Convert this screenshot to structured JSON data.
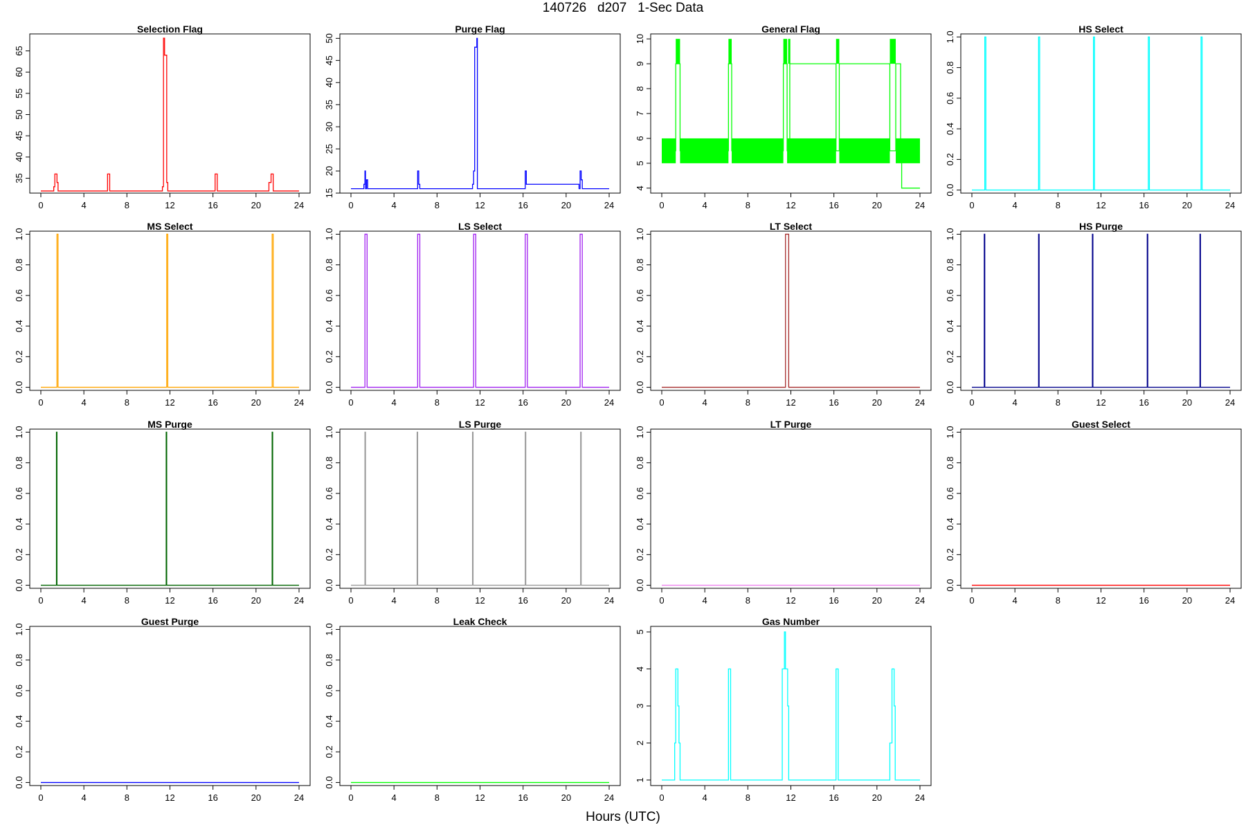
{
  "figure": {
    "title": "140726   d207   1-Sec Data",
    "xlabel": "Hours (UTC)"
  },
  "chart_data": [
    {
      "type": "line",
      "title": "Selection Flag",
      "color": "#ff0000",
      "xlim": [
        0,
        24
      ],
      "ylim": [
        31.5,
        69
      ],
      "xticks": [
        0,
        4,
        8,
        12,
        16,
        20,
        24
      ],
      "yticks": [
        35,
        40,
        45,
        50,
        55,
        60,
        65
      ],
      "x": [
        0,
        1.2,
        1.2,
        1.3,
        1.3,
        1.5,
        1.5,
        1.6,
        1.6,
        6.2,
        6.2,
        6.4,
        6.4,
        11.3,
        11.3,
        11.4,
        11.4,
        11.5,
        11.5,
        11.7,
        11.7,
        11.8,
        11.8,
        16.2,
        16.2,
        16.4,
        16.4,
        21.2,
        21.2,
        21.4,
        21.4,
        21.6,
        21.6,
        24
      ],
      "y": [
        32,
        32,
        33,
        33,
        36,
        36,
        34,
        34,
        32,
        32,
        36,
        36,
        32,
        32,
        33,
        33,
        68,
        68,
        64,
        64,
        34,
        34,
        32,
        32,
        36,
        36,
        32,
        32,
        34,
        34,
        36,
        36,
        32,
        32
      ]
    },
    {
      "type": "line",
      "title": "Purge Flag",
      "color": "#0000ff",
      "xlim": [
        0,
        24
      ],
      "ylim": [
        15,
        51
      ],
      "xticks": [
        0,
        4,
        8,
        12,
        16,
        20,
        24
      ],
      "yticks": [
        15,
        20,
        25,
        30,
        35,
        40,
        45,
        50
      ],
      "x": [
        0,
        1.2,
        1.2,
        1.3,
        1.3,
        1.35,
        1.35,
        1.45,
        1.45,
        1.55,
        1.55,
        6.2,
        6.2,
        6.3,
        6.3,
        6.4,
        6.4,
        11.3,
        11.3,
        11.4,
        11.4,
        11.5,
        11.5,
        11.7,
        11.7,
        11.75,
        11.75,
        16.2,
        16.2,
        16.3,
        16.3,
        21.2,
        21.2,
        21.3,
        21.3,
        21.4,
        21.4,
        21.5,
        21.5,
        24
      ],
      "y": [
        16,
        16,
        17,
        17,
        20,
        20,
        16,
        16,
        18,
        18,
        16,
        16,
        20,
        20,
        17,
        17,
        16,
        16,
        17,
        17,
        20,
        20,
        48,
        48,
        50,
        50,
        16,
        16,
        20,
        20,
        17,
        17,
        16,
        16,
        20,
        20,
        18,
        18,
        16,
        16
      ]
    },
    {
      "type": "line",
      "title": "General Flag",
      "color": "#00ff00",
      "xlim": [
        0,
        24
      ],
      "ylim": [
        3.8,
        10.2
      ],
      "xticks": [
        0,
        4,
        8,
        12,
        16,
        20,
        24
      ],
      "yticks": [
        4,
        5,
        6,
        7,
        8,
        9,
        10
      ],
      "x": [
        0,
        1.3,
        1.3,
        1.7,
        1.7,
        6.2,
        6.2,
        6.5,
        6.5,
        11.3,
        11.3,
        11.65,
        11.65,
        11.9,
        11.9,
        16.2,
        16.2,
        16.5,
        16.5,
        21.2,
        21.2,
        21.75,
        21.75,
        22.2,
        22.2,
        22.3,
        22.3,
        24
      ],
      "y": [
        5.5,
        5.5,
        9,
        9,
        5.5,
        5.5,
        9,
        9,
        5.5,
        5.5,
        9,
        9,
        5.5,
        5.5,
        9,
        9,
        5.5,
        5.5,
        9,
        9,
        5.5,
        5.5,
        9,
        9,
        5.5,
        5.5,
        4,
        4
      ]
    },
    {
      "type": "line",
      "title": "HS Select",
      "color": "#00ffff",
      "xlim": [
        0,
        24
      ],
      "ylim": [
        -0.02,
        1.02
      ],
      "xticks": [
        0,
        4,
        8,
        12,
        16,
        20,
        24
      ],
      "yticks": [
        0,
        0.2,
        0.4,
        0.6,
        0.8,
        1
      ],
      "x": [
        0,
        1.2,
        1.2,
        1.3,
        1.3,
        6.2,
        6.2,
        6.3,
        6.3,
        11.3,
        11.3,
        11.4,
        11.4,
        16.4,
        16.4,
        16.5,
        16.5,
        21.3,
        21.3,
        21.4,
        21.4,
        24
      ],
      "y": [
        0,
        0,
        1,
        1,
        0,
        0,
        1,
        1,
        0,
        0,
        1,
        1,
        0,
        0,
        1,
        1,
        0,
        0,
        1,
        1,
        0,
        0
      ]
    },
    {
      "type": "line",
      "title": "MS Select",
      "color": "#ffa500",
      "xlim": [
        0,
        24
      ],
      "ylim": [
        -0.02,
        1.02
      ],
      "xticks": [
        0,
        4,
        8,
        12,
        16,
        20,
        24
      ],
      "yticks": [
        0,
        0.2,
        0.4,
        0.6,
        0.8,
        1
      ],
      "x": [
        0,
        1.5,
        1.5,
        1.6,
        1.6,
        11.7,
        11.7,
        11.8,
        11.8,
        21.5,
        21.5,
        21.6,
        21.6,
        24
      ],
      "y": [
        0,
        0,
        1,
        1,
        0,
        0,
        1,
        1,
        0,
        0,
        1,
        1,
        0,
        0
      ]
    },
    {
      "type": "line",
      "title": "LS Select",
      "color": "#a020f0",
      "xlim": [
        0,
        24
      ],
      "ylim": [
        -0.02,
        1.02
      ],
      "xticks": [
        0,
        4,
        8,
        12,
        16,
        20,
        24
      ],
      "yticks": [
        0,
        0.2,
        0.4,
        0.6,
        0.8,
        1
      ],
      "x": [
        0,
        1.3,
        1.3,
        1.5,
        1.5,
        6.2,
        6.2,
        6.4,
        6.4,
        11.4,
        11.4,
        11.6,
        11.6,
        16.2,
        16.2,
        16.4,
        16.4,
        21.3,
        21.3,
        21.5,
        21.5,
        24
      ],
      "y": [
        0,
        0,
        1,
        1,
        0,
        0,
        1,
        1,
        0,
        0,
        1,
        1,
        0,
        0,
        1,
        1,
        0,
        0,
        1,
        1,
        0,
        0
      ]
    },
    {
      "type": "line",
      "title": "LT Select",
      "color": "#a52a2a",
      "xlim": [
        0,
        24
      ],
      "ylim": [
        -0.02,
        1.02
      ],
      "xticks": [
        0,
        4,
        8,
        12,
        16,
        20,
        24
      ],
      "yticks": [
        0,
        0.2,
        0.4,
        0.6,
        0.8,
        1
      ],
      "x": [
        0,
        11.5,
        11.5,
        11.8,
        11.8,
        24
      ],
      "y": [
        0,
        0,
        1,
        1,
        0,
        0
      ]
    },
    {
      "type": "line",
      "title": "HS Purge",
      "color": "#00008b",
      "xlim": [
        0,
        24
      ],
      "ylim": [
        -0.02,
        1.02
      ],
      "xticks": [
        0,
        4,
        8,
        12,
        16,
        20,
        24
      ],
      "yticks": [
        0,
        0.2,
        0.4,
        0.6,
        0.8,
        1
      ],
      "x": [
        0,
        1.15,
        1.15,
        1.2,
        1.2,
        6.2,
        6.2,
        6.25,
        6.25,
        11.2,
        11.2,
        11.25,
        11.25,
        16.3,
        16.3,
        16.35,
        16.35,
        21.2,
        21.2,
        21.25,
        21.25,
        24
      ],
      "y": [
        0,
        0,
        1,
        1,
        0,
        0,
        1,
        1,
        0,
        0,
        1,
        1,
        0,
        0,
        1,
        1,
        0,
        0,
        1,
        1,
        0,
        0
      ]
    },
    {
      "type": "line",
      "title": "MS Purge",
      "color": "#006400",
      "xlim": [
        0,
        24
      ],
      "ylim": [
        -0.02,
        1.02
      ],
      "xticks": [
        0,
        4,
        8,
        12,
        16,
        20,
        24
      ],
      "yticks": [
        0,
        0.2,
        0.4,
        0.6,
        0.8,
        1
      ],
      "x": [
        0,
        1.45,
        1.45,
        1.5,
        1.5,
        11.65,
        11.65,
        11.7,
        11.7,
        21.5,
        21.5,
        21.55,
        21.55,
        24
      ],
      "y": [
        0,
        0,
        1,
        1,
        0,
        0,
        1,
        1,
        0,
        0,
        1,
        1,
        0,
        0
      ]
    },
    {
      "type": "line",
      "title": "LS Purge",
      "color": "#999999",
      "xlim": [
        0,
        24
      ],
      "ylim": [
        -0.02,
        1.02
      ],
      "xticks": [
        0,
        4,
        8,
        12,
        16,
        20,
        24
      ],
      "yticks": [
        0,
        0.2,
        0.4,
        0.6,
        0.8,
        1
      ],
      "x": [
        0,
        1.3,
        1.3,
        1.35,
        1.35,
        6.15,
        6.15,
        6.2,
        6.2,
        11.3,
        11.3,
        11.35,
        11.35,
        16.2,
        16.2,
        16.25,
        16.25,
        21.35,
        21.35,
        21.4,
        21.4,
        24
      ],
      "y": [
        0,
        0,
        1,
        1,
        0,
        0,
        1,
        1,
        0,
        0,
        1,
        1,
        0,
        0,
        1,
        1,
        0,
        0,
        1,
        1,
        0,
        0
      ]
    },
    {
      "type": "line",
      "title": "LT Purge",
      "color": "#ee82ee",
      "xlim": [
        0,
        24
      ],
      "ylim": [
        -0.02,
        1.02
      ],
      "xticks": [
        0,
        4,
        8,
        12,
        16,
        20,
        24
      ],
      "yticks": [
        0,
        0.2,
        0.4,
        0.6,
        0.8,
        1
      ],
      "x": [
        0,
        24
      ],
      "y": [
        0,
        0
      ]
    },
    {
      "type": "line",
      "title": "Guest Select",
      "color": "#ff0000",
      "xlim": [
        0,
        24
      ],
      "ylim": [
        -0.02,
        1.02
      ],
      "xticks": [
        0,
        4,
        8,
        12,
        16,
        20,
        24
      ],
      "yticks": [
        0,
        0.2,
        0.4,
        0.6,
        0.8,
        1
      ],
      "x": [
        0,
        24
      ],
      "y": [
        0,
        0
      ]
    },
    {
      "type": "line",
      "title": "Guest Purge",
      "color": "#0000ff",
      "xlim": [
        0,
        24
      ],
      "ylim": [
        -0.02,
        1.02
      ],
      "xticks": [
        0,
        4,
        8,
        12,
        16,
        20,
        24
      ],
      "yticks": [
        0,
        0.2,
        0.4,
        0.6,
        0.8,
        1
      ],
      "x": [
        0,
        24
      ],
      "y": [
        0,
        0
      ]
    },
    {
      "type": "line",
      "title": "Leak Check",
      "color": "#00ff00",
      "xlim": [
        0,
        24
      ],
      "ylim": [
        -0.02,
        1.02
      ],
      "xticks": [
        0,
        4,
        8,
        12,
        16,
        20,
        24
      ],
      "yticks": [
        0,
        0.2,
        0.4,
        0.6,
        0.8,
        1
      ],
      "x": [
        0,
        24
      ],
      "y": [
        0,
        0
      ]
    },
    {
      "type": "line",
      "title": "Gas Number",
      "color": "#00ffff",
      "xlim": [
        0,
        24
      ],
      "ylim": [
        0.85,
        5.15
      ],
      "xticks": [
        0,
        4,
        8,
        12,
        16,
        20,
        24
      ],
      "yticks": [
        1,
        2,
        3,
        4,
        5
      ],
      "x": [
        0,
        1.2,
        1.2,
        1.3,
        1.3,
        1.5,
        1.5,
        1.6,
        1.6,
        1.7,
        1.7,
        6.2,
        6.2,
        6.4,
        6.4,
        11.2,
        11.2,
        11.4,
        11.4,
        11.5,
        11.5,
        11.7,
        11.7,
        11.8,
        11.8,
        16.2,
        16.2,
        16.4,
        16.4,
        21.2,
        21.2,
        21.4,
        21.4,
        21.6,
        21.6,
        21.7,
        21.7,
        24
      ],
      "y": [
        1,
        1,
        2,
        2,
        4,
        4,
        3,
        3,
        2,
        2,
        1,
        1,
        4,
        4,
        1,
        1,
        4,
        4,
        5,
        5,
        4,
        4,
        3,
        3,
        1,
        1,
        4,
        4,
        1,
        1,
        2,
        2,
        4,
        4,
        3,
        3,
        1,
        1
      ]
    }
  ]
}
